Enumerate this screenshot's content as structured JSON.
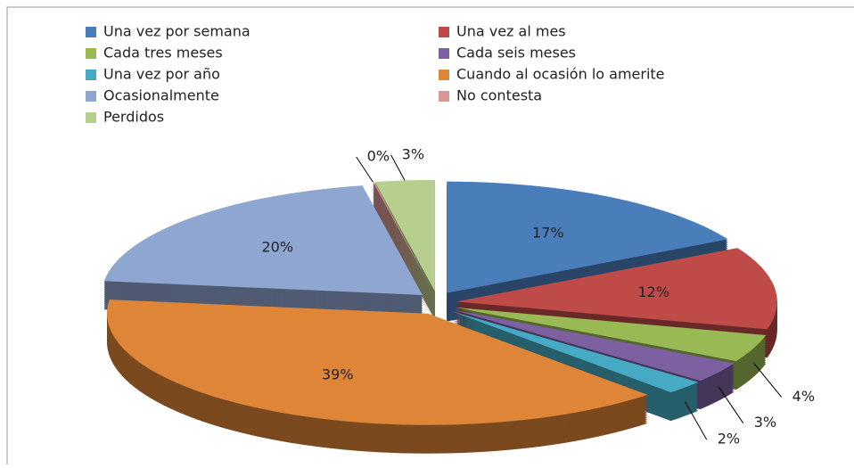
{
  "chart_data": {
    "type": "pie",
    "categories": [
      "Una vez por semana",
      "Una vez al mes",
      "Cada tres meses",
      "Cada seis meses",
      "Una vez por año",
      "Cuando al ocasión lo amerite",
      "Ocasionalmente",
      "No contesta",
      "Perdidos"
    ],
    "values": [
      17,
      12,
      4,
      3,
      2,
      39,
      20,
      0,
      3
    ],
    "value_labels": [
      "17%",
      "12%",
      "4%",
      "3%",
      "2%",
      "39%",
      "20%",
      "0%",
      "3%"
    ],
    "colors": [
      "#4a7ebb",
      "#be4b48",
      "#98b954",
      "#7d60a0",
      "#46aac5",
      "#de8537",
      "#8fa6d0",
      "#d99694",
      "#b7cf8e"
    ],
    "legend": "top"
  }
}
